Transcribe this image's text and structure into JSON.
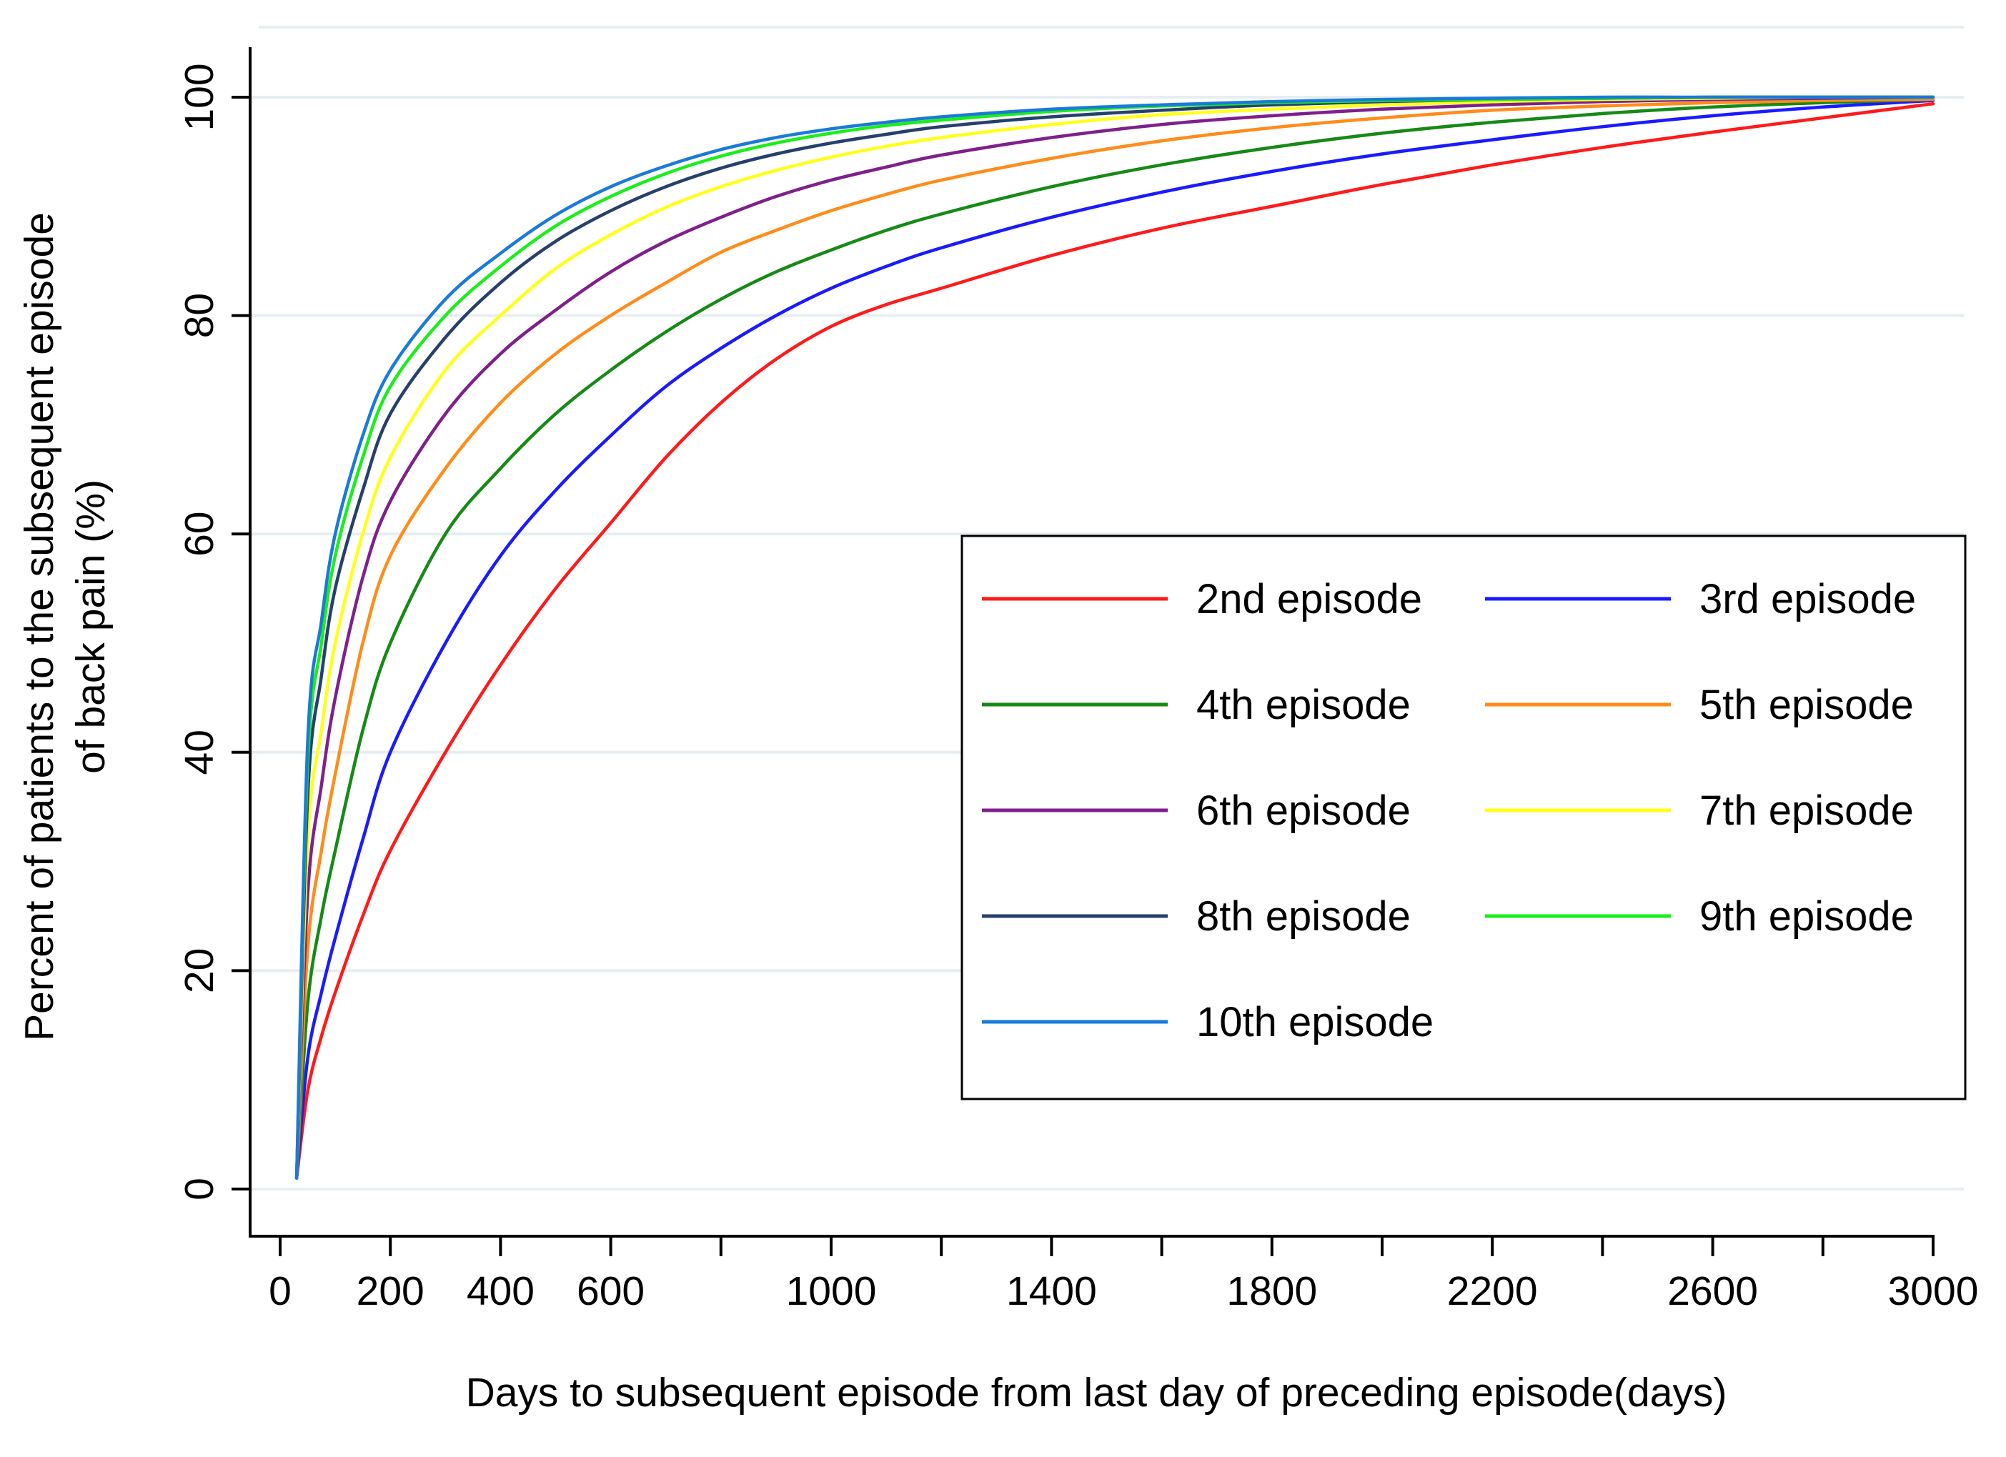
{
  "chart_data": {
    "type": "line",
    "title": "",
    "xlabel": "Days to subsequent episode from last day of preceding episode(days)",
    "ylabel_line1": "Percent of patients to the subsequent episode",
    "ylabel_line2": "of back pain (%)",
    "xlim": [
      0,
      3000
    ],
    "ylim": [
      0,
      100
    ],
    "x_major_ticks": [
      0,
      200,
      400,
      600,
      1000,
      1400,
      1800,
      2200,
      2600,
      3000
    ],
    "x_major_tick_labels": [
      "0",
      "200",
      "400",
      "600",
      "1000",
      "1400",
      "1800",
      "2200",
      "2600",
      "3000"
    ],
    "x_minor_ticks": [
      800,
      1200,
      1600,
      2000,
      2400,
      2800
    ],
    "y_ticks": [
      0,
      20,
      40,
      60,
      80,
      100
    ],
    "y_tick_labels": [
      "0",
      "20",
      "40",
      "60",
      "80",
      "100"
    ],
    "grid": "horizontal",
    "legend_position": "center-right",
    "legend_columns": 2,
    "x": [
      30,
      50,
      75,
      100,
      150,
      200,
      300,
      400,
      500,
      600,
      700,
      800,
      900,
      1000,
      1100,
      1200,
      1400,
      1600,
      1800,
      2000,
      2200,
      2400,
      2600,
      2800,
      3000
    ],
    "series": [
      {
        "name": "2nd episode",
        "color": "#ff1a1a",
        "values": [
          1,
          9,
          14,
          18,
          25,
          31,
          40,
          48,
          55,
          61,
          67,
          72,
          76,
          79,
          81,
          82.5,
          85.5,
          88,
          90,
          92,
          93.8,
          95.4,
          96.8,
          98.1,
          99.4
        ]
      },
      {
        "name": "3rd episode",
        "color": "#1a1aff",
        "values": [
          1,
          12,
          18,
          23,
          32,
          40,
          50,
          58,
          64,
          69,
          73.5,
          77,
          80,
          82.5,
          84.5,
          86.2,
          89,
          91.3,
          93.2,
          94.8,
          96.1,
          97.3,
          98.3,
          99.1,
          99.7
        ]
      },
      {
        "name": "4th episode",
        "color": "#158a15",
        "values": [
          1,
          17,
          25,
          31,
          42,
          50,
          60,
          66,
          71,
          75,
          78.5,
          81.5,
          84,
          86,
          87.8,
          89.3,
          91.8,
          93.8,
          95.4,
          96.7,
          97.7,
          98.5,
          99.1,
          99.5,
          99.8
        ]
      },
      {
        "name": "5th episode",
        "color": "#ff8c1a",
        "values": [
          1,
          22,
          31,
          38,
          50,
          58,
          66,
          72,
          76.5,
          80,
          83,
          85.8,
          87.8,
          89.6,
          91.1,
          92.4,
          94.4,
          96,
          97.2,
          98.1,
          98.8,
          99.2,
          99.5,
          99.7,
          99.8
        ]
      },
      {
        "name": "6th episode",
        "color": "#7f1f8c",
        "values": [
          1,
          27,
          37,
          45,
          56,
          63,
          71,
          76.5,
          80.5,
          84,
          86.8,
          89,
          90.9,
          92.4,
          93.6,
          94.7,
          96.3,
          97.5,
          98.3,
          98.9,
          99.3,
          99.6,
          99.8,
          99.9,
          100
        ]
      },
      {
        "name": "7th episode",
        "color": "#ffff1a",
        "values": [
          1,
          32,
          42,
          50,
          60,
          67,
          75,
          80,
          84.3,
          87.4,
          89.9,
          91.8,
          93.3,
          94.5,
          95.5,
          96.3,
          97.5,
          98.4,
          98.9,
          99.3,
          99.6,
          99.8,
          99.9,
          100,
          100
        ]
      },
      {
        "name": "8th episode",
        "color": "#25406b",
        "values": [
          1,
          36,
          47,
          55,
          64,
          71,
          78,
          83,
          86.8,
          89.6,
          91.8,
          93.5,
          94.8,
          95.8,
          96.6,
          97.3,
          98.2,
          98.8,
          99.3,
          99.6,
          99.8,
          99.9,
          100,
          100,
          100
        ]
      },
      {
        "name": "9th episode",
        "color": "#1aee1a",
        "values": [
          1,
          39,
          50,
          58,
          67,
          73.5,
          80,
          84.5,
          88.2,
          90.9,
          93,
          94.6,
          95.8,
          96.7,
          97.4,
          97.9,
          98.7,
          99.2,
          99.5,
          99.7,
          99.8,
          99.9,
          100,
          100,
          100
        ]
      },
      {
        "name": "10th episode",
        "color": "#1a7ad9",
        "values": [
          1,
          41,
          52,
          60,
          69,
          75,
          81.5,
          85.7,
          89.2,
          91.8,
          93.7,
          95.2,
          96.3,
          97.1,
          97.7,
          98.2,
          98.9,
          99.3,
          99.6,
          99.8,
          99.9,
          100,
          100,
          100,
          100
        ]
      }
    ]
  }
}
